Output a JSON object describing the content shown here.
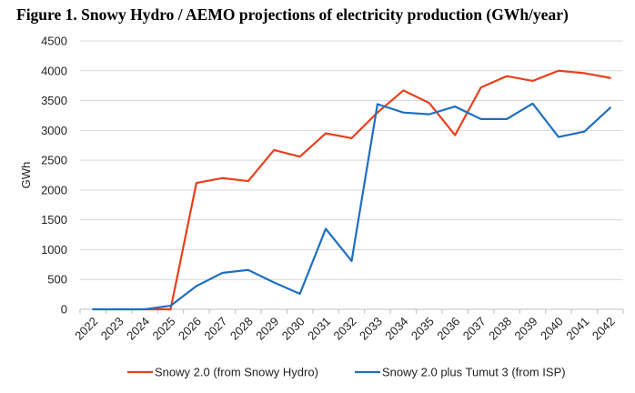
{
  "title": "Figure 1. Snowy Hydro / AEMO projections of electricity production (GWh/year)",
  "colors": {
    "series_1": "#e8401c",
    "series_2": "#1f6fbf",
    "grid": "#d9d9d9",
    "axis": "#bfbfbf"
  },
  "chart_data": {
    "type": "line",
    "title": "Figure 1. Snowy Hydro / AEMO projections of electricity production (GWh/year)",
    "xlabel": "",
    "ylabel": "GWh",
    "ylim": [
      0,
      4500
    ],
    "yticks": [
      "0",
      "500",
      "1000",
      "1500",
      "2000",
      "2500",
      "3000",
      "3500",
      "4000",
      "4500"
    ],
    "grid": true,
    "legend_position": "bottom",
    "categories": [
      "2022",
      "2023",
      "2024",
      "2025",
      "2026",
      "2027",
      "2028",
      "2029",
      "2030",
      "2031",
      "2032",
      "2033",
      "2034",
      "2035",
      "2036",
      "2037",
      "2038",
      "2039",
      "2040",
      "2041",
      "2042"
    ],
    "series": [
      {
        "name": "Snowy 2.0 (from Snowy Hydro)",
        "color": "#e8401c",
        "values": [
          null,
          null,
          0,
          0,
          2120,
          2200,
          2150,
          2670,
          2560,
          2950,
          2870,
          3300,
          3670,
          3460,
          2920,
          3720,
          3910,
          3830,
          4000,
          3960,
          3880
        ]
      },
      {
        "name": "Snowy 2.0 plus Tumut 3 (from ISP)",
        "color": "#1f6fbf",
        "values": [
          0,
          0,
          0,
          60,
          390,
          610,
          660,
          450,
          260,
          1350,
          810,
          3440,
          3300,
          3270,
          3400,
          3190,
          3190,
          3450,
          2890,
          2980,
          3380
        ]
      }
    ]
  }
}
